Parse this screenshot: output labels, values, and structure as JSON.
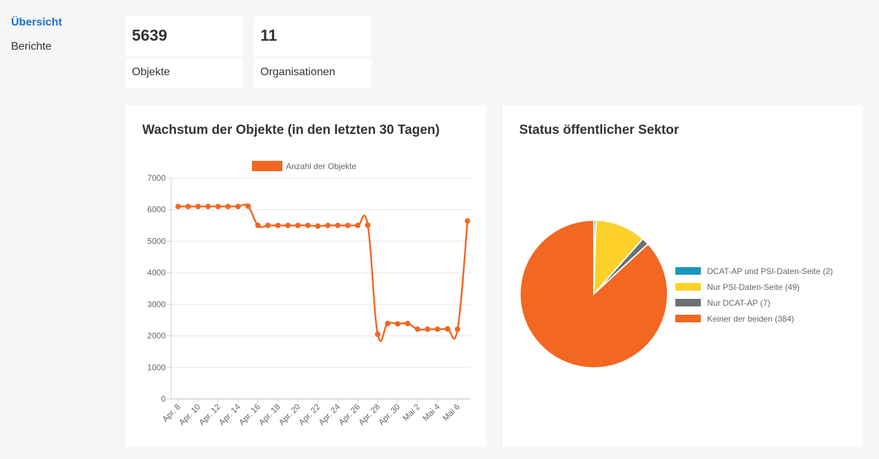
{
  "nav": {
    "items": [
      {
        "label": "Übersicht",
        "active": true
      },
      {
        "label": "Berichte",
        "active": false
      }
    ]
  },
  "stats": [
    {
      "value": "5639",
      "label": "Objekte"
    },
    {
      "value": "11",
      "label": "Organisationen"
    }
  ],
  "colors": {
    "link": "#1a73c8",
    "orange": "#f26722",
    "teal": "#1c97bd",
    "yellow": "#fdd12a",
    "gray": "#6b7275"
  },
  "growth_card": {
    "title": "Wachstum der Objekte (in den letzten 30 Tagen)"
  },
  "status_card": {
    "title": "Status öffentlicher Sektor"
  },
  "chart_data": [
    {
      "type": "line",
      "title": "Wachstum der Objekte (in den letzten 30 Tagen)",
      "x_ticks": [
        "Apr. 8",
        "Apr. 10",
        "Apr. 12",
        "Apr. 14",
        "Apr. 16",
        "Apr. 18",
        "Apr. 20",
        "Apr. 22",
        "Apr. 24",
        "Apr. 26",
        "Apr. 28",
        "Apr. 30",
        "Mai 2",
        "Mai 4",
        "Mai 6"
      ],
      "y_ticks": [
        0,
        1000,
        2000,
        3000,
        4000,
        5000,
        6000,
        7000
      ],
      "ylim": [
        0,
        7000
      ],
      "grid": true,
      "legend": "top",
      "series": [
        {
          "name": "Anzahl der Objekte",
          "color": "#f26722",
          "x": [
            "Apr. 8",
            "Apr. 9",
            "Apr. 10",
            "Apr. 11",
            "Apr. 12",
            "Apr. 13",
            "Apr. 14",
            "Apr. 15",
            "Apr. 16",
            "Apr. 17",
            "Apr. 18",
            "Apr. 19",
            "Apr. 20",
            "Apr. 21",
            "Apr. 22",
            "Apr. 23",
            "Apr. 24",
            "Apr. 25",
            "Apr. 26",
            "Apr. 27",
            "Apr. 28",
            "Apr. 29",
            "Apr. 30",
            "Mai 1",
            "Mai 2",
            "Mai 3",
            "Mai 4",
            "Mai 5",
            "Mai 6",
            "Mai 7"
          ],
          "values": [
            6100,
            6100,
            6100,
            6100,
            6100,
            6100,
            6100,
            6110,
            5500,
            5500,
            5500,
            5500,
            5500,
            5500,
            5480,
            5500,
            5500,
            5500,
            5500,
            5510,
            2050,
            2390,
            2380,
            2390,
            2210,
            2210,
            2210,
            2220,
            2210,
            5640
          ]
        }
      ]
    },
    {
      "type": "pie",
      "title": "Status öffentlicher Sektor",
      "legend": "right",
      "slices": [
        {
          "label": "DCAT-AP und PSI-Daten-Seite (2)",
          "value": 2,
          "color": "#1c97bd"
        },
        {
          "label": "Nur PSI-Daten-Seite (49)",
          "value": 49,
          "color": "#fdd12a"
        },
        {
          "label": "Nur DCAT-AP (7)",
          "value": 7,
          "color": "#6b7275"
        },
        {
          "label": "Keiner der beiden (384)",
          "value": 384,
          "color": "#f26722"
        }
      ]
    }
  ]
}
